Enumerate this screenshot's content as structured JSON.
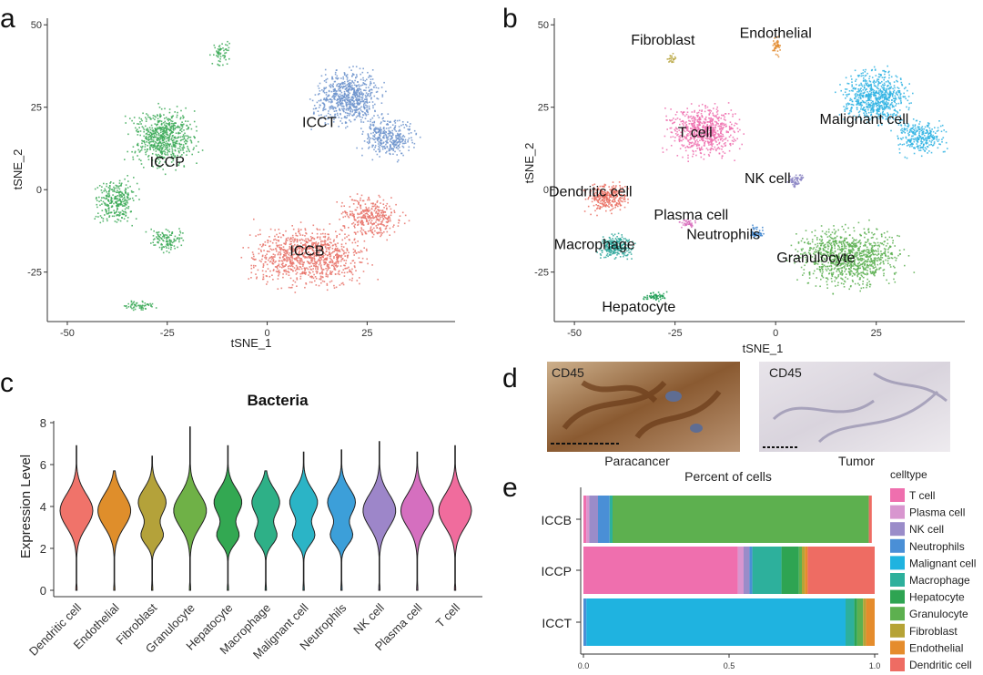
{
  "panels": [
    "a",
    "b",
    "c",
    "d",
    "e"
  ],
  "chart_data": [
    {
      "type": "scatter",
      "panel": "a",
      "xlabel": "tSNE_1",
      "ylabel": "tSNE_2",
      "xticks": [
        -50,
        -25,
        0,
        25
      ],
      "yticks": [
        50,
        25,
        0,
        -25
      ],
      "xlim": [
        -55,
        47
      ],
      "ylim": [
        -40,
        52
      ],
      "clusters": [
        {
          "label": "ICCT",
          "color": "#6f94cd",
          "cx": 18,
          "cy": 20,
          "label_x": 13,
          "label_y": 19
        },
        {
          "label": "ICCP",
          "color": "#3daa58",
          "cx": -26,
          "cy": 10,
          "label_x": -25,
          "label_y": 7
        },
        {
          "label": "ICCB",
          "color": "#e8736a",
          "cx": 8,
          "cy": -19,
          "label_x": 10,
          "label_y": -20
        }
      ]
    },
    {
      "type": "scatter",
      "panel": "b",
      "xlabel": "tSNE_1",
      "ylabel": "tSNE_2",
      "xticks": [
        -50,
        -25,
        0,
        25
      ],
      "yticks": [
        50,
        25,
        0,
        -25
      ],
      "xlim": [
        -55,
        47
      ],
      "ylim": [
        -40,
        52
      ],
      "clusters": [
        {
          "label": "Fibroblast",
          "color": "#b5a136",
          "label_x": -28,
          "label_y": 44
        },
        {
          "label": "Endothelial",
          "color": "#e28a2d",
          "label_x": 0,
          "label_y": 46
        },
        {
          "label": "Malignant cell",
          "color": "#2fb3e3",
          "label_x": 22,
          "label_y": 20
        },
        {
          "label": "T cell",
          "color": "#ef6fae",
          "label_x": -20,
          "label_y": 16
        },
        {
          "label": "NK cell",
          "color": "#8c86c4",
          "label_x": -2,
          "label_y": 2
        },
        {
          "label": "Dendritic cell",
          "color": "#ea6f62",
          "label_x": -46,
          "label_y": -2
        },
        {
          "label": "Plasma cell",
          "color": "#d86fbd",
          "label_x": -21,
          "label_y": -9
        },
        {
          "label": "Neutrophils",
          "color": "#3f86cf",
          "label_x": -13,
          "label_y": -15
        },
        {
          "label": "Macrophage",
          "color": "#2ea79b",
          "label_x": -45,
          "label_y": -18
        },
        {
          "label": "Granulocyte",
          "color": "#5db052",
          "label_x": 10,
          "label_y": -22
        },
        {
          "label": "Hepatocyte",
          "color": "#1f9e55",
          "label_x": -34,
          "label_y": -37
        }
      ]
    },
    {
      "type": "violin",
      "panel": "c",
      "title": "Bacteria",
      "ylabel": "Expression Level",
      "ylim": [
        0,
        8
      ],
      "yticks": [
        0,
        2,
        4,
        6,
        8
      ],
      "categories": [
        "Dendritic cell",
        "Endothelial",
        "Fibroblast",
        "Granulocyte",
        "Hepatocyte",
        "Macrophage",
        "Malignant cell",
        "Neutrophils",
        "NK cell",
        "Plasma cell",
        "T cell"
      ],
      "colors": [
        "#f0736a",
        "#df8e2b",
        "#b4a23a",
        "#6fb147",
        "#33a852",
        "#2eb087",
        "#2bb4c6",
        "#3c9fd9",
        "#9d86c9",
        "#d56fbf",
        "#f06c9d"
      ],
      "max": [
        6.9,
        5.7,
        6.4,
        7.8,
        6.9,
        5.7,
        6.6,
        6.7,
        7.1,
        6.6,
        6.9
      ],
      "min": [
        0,
        0,
        0,
        0,
        0,
        0,
        0,
        0,
        0,
        0,
        0
      ]
    },
    {
      "type": "bar",
      "panel": "e",
      "title": "Percent of cells",
      "orientation": "horizontal-stacked",
      "categories": [
        "ICCB",
        "ICCP",
        "ICCT"
      ],
      "xticks": [
        "0.0",
        "0.5",
        "1.0"
      ],
      "xlim": [
        0,
        1
      ],
      "legend_title": "celltype",
      "series": [
        {
          "name": "T cell",
          "color": "#ef6fae",
          "values": [
            0.01,
            0.53,
            0.0
          ]
        },
        {
          "name": "Plasma cell",
          "color": "#d896cf",
          "values": [
            0.01,
            0.02,
            0.0
          ]
        },
        {
          "name": "NK cell",
          "color": "#9a8cc9",
          "values": [
            0.03,
            0.02,
            0.0
          ]
        },
        {
          "name": "Neutrophils",
          "color": "#4a8fd6",
          "values": [
            0.04,
            0.01,
            0.01
          ]
        },
        {
          "name": "Malignant cell",
          "color": "#1fb3e0",
          "values": [
            0.0,
            0.0,
            0.89
          ]
        },
        {
          "name": "Macrophage",
          "color": "#2db09c",
          "values": [
            0.01,
            0.1,
            0.03
          ]
        },
        {
          "name": "Hepatocyte",
          "color": "#2ea452",
          "values": [
            0.0,
            0.06,
            0.01
          ]
        },
        {
          "name": "Granulocyte",
          "color": "#5db04f",
          "values": [
            0.88,
            0.01,
            0.02
          ]
        },
        {
          "name": "Fibroblast",
          "color": "#b6a336",
          "values": [
            0.0,
            0.01,
            0.01
          ]
        },
        {
          "name": "Endothelial",
          "color": "#e58c2c",
          "values": [
            0.0,
            0.01,
            0.03
          ]
        },
        {
          "name": "Dendritic cell",
          "color": "#ee6c63",
          "values": [
            0.01,
            0.23,
            0.0
          ]
        }
      ]
    }
  ],
  "micrographs": [
    {
      "marker": "CD45",
      "caption": "Paracancer"
    },
    {
      "marker": "CD45",
      "caption": "Tumor"
    }
  ]
}
